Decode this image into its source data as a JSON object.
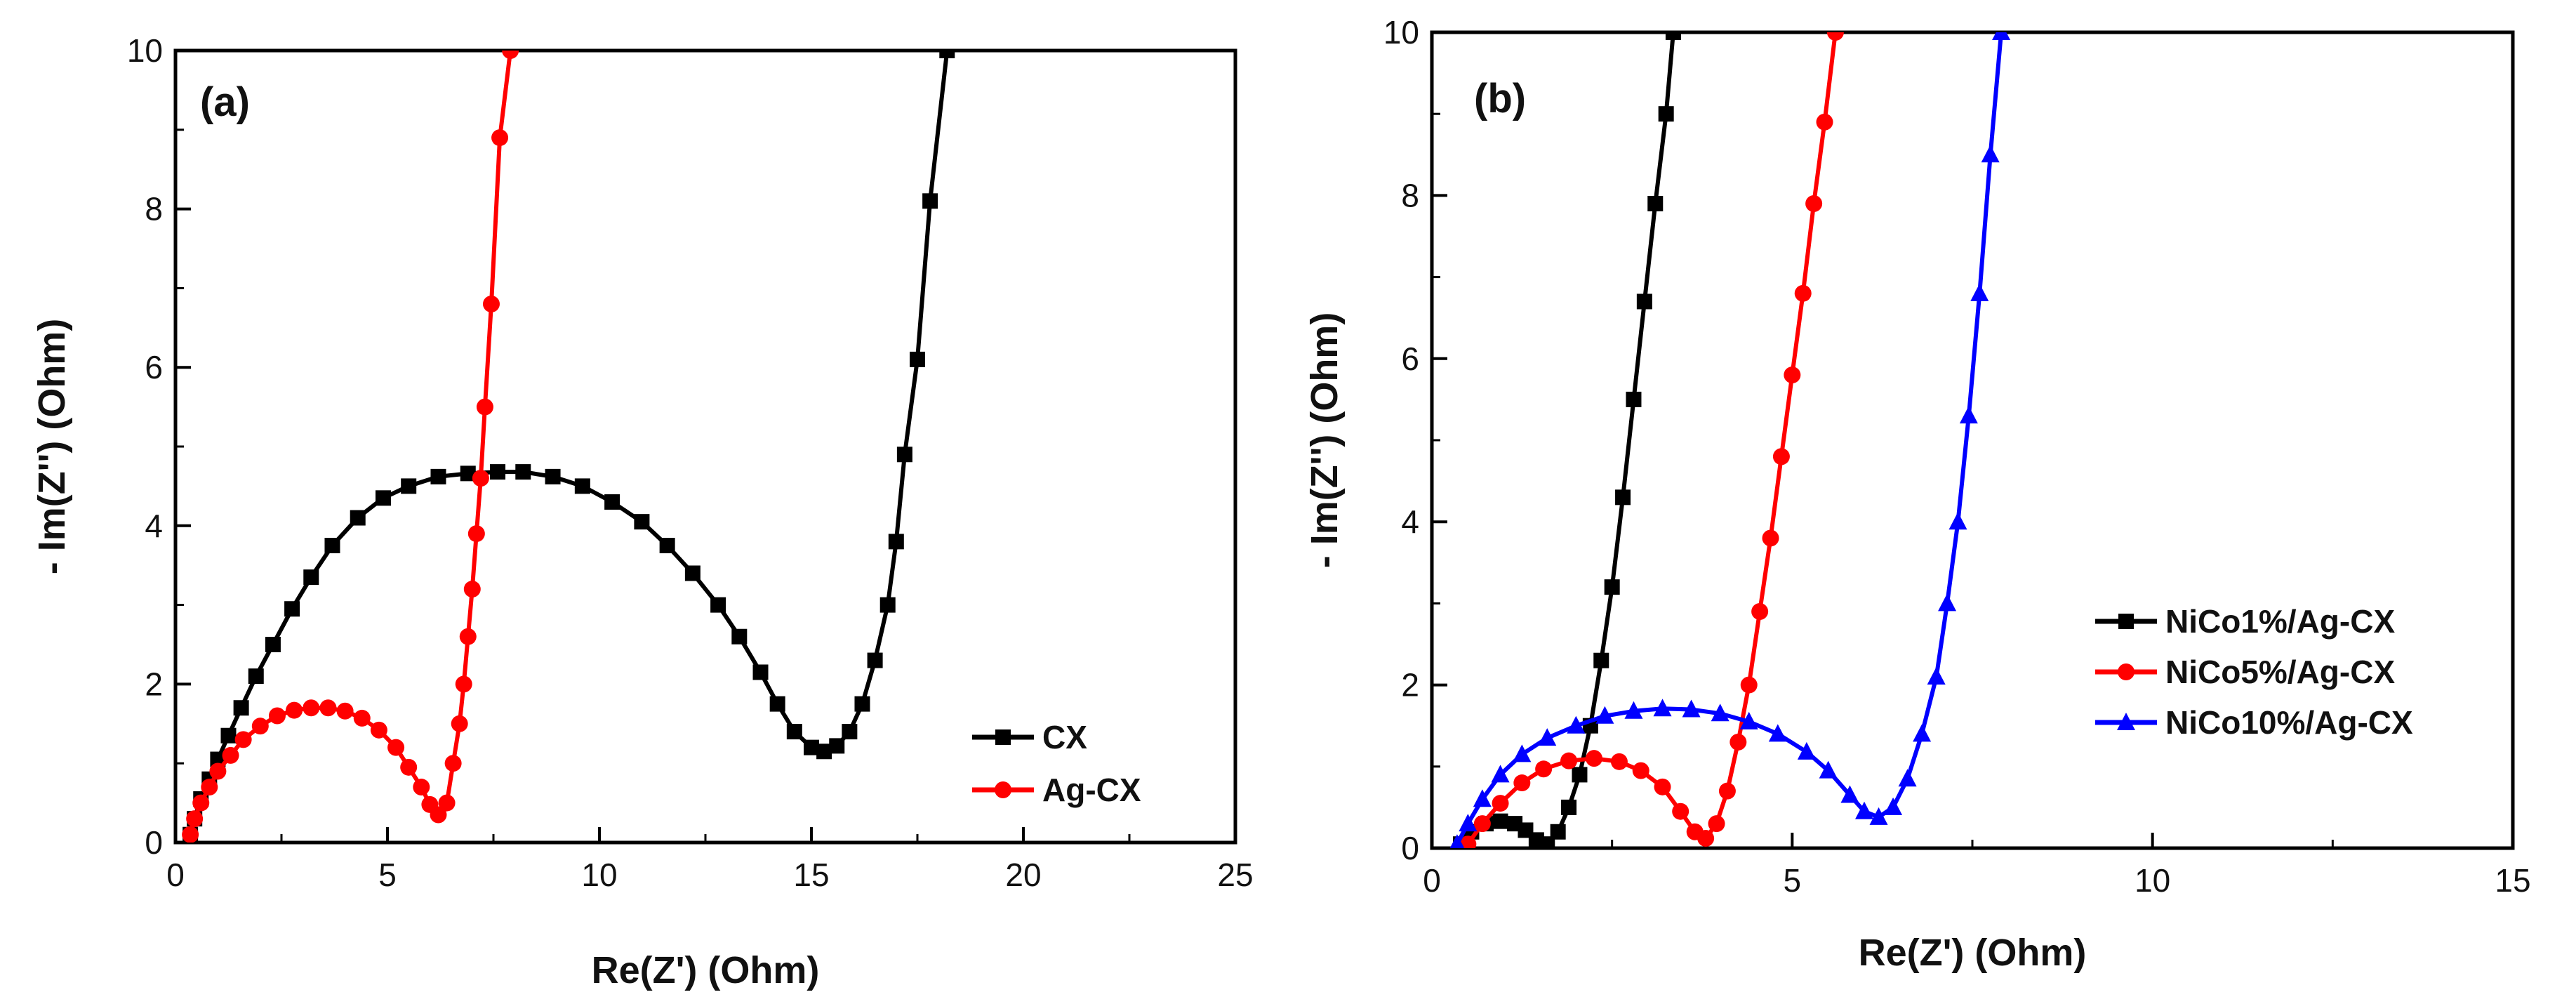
{
  "chart_data": [
    {
      "type": "line",
      "panel_label": "(a)",
      "xlabel": "Re(Z') (Ohm)",
      "ylabel": "- Im(Z'') (Ohm)",
      "xlim": [
        0,
        25
      ],
      "ylim": [
        0,
        10
      ],
      "xticks": [
        0,
        5,
        10,
        15,
        20,
        25
      ],
      "yticks": [
        0,
        2,
        4,
        6,
        8,
        10
      ],
      "legend_position": "bottom-right",
      "series": [
        {
          "name": "CX",
          "color": "#000000",
          "marker": "square",
          "points": [
            [
              0.35,
              0.1
            ],
            [
              0.45,
              0.3
            ],
            [
              0.6,
              0.55
            ],
            [
              0.8,
              0.8
            ],
            [
              1.0,
              1.05
            ],
            [
              1.25,
              1.35
            ],
            [
              1.55,
              1.7
            ],
            [
              1.9,
              2.1
            ],
            [
              2.3,
              2.5
            ],
            [
              2.75,
              2.95
            ],
            [
              3.2,
              3.35
            ],
            [
              3.7,
              3.75
            ],
            [
              4.3,
              4.1
            ],
            [
              4.9,
              4.35
            ],
            [
              5.5,
              4.5
            ],
            [
              6.2,
              4.62
            ],
            [
              6.9,
              4.66
            ],
            [
              7.6,
              4.68
            ],
            [
              8.2,
              4.68
            ],
            [
              8.9,
              4.62
            ],
            [
              9.6,
              4.5
            ],
            [
              10.3,
              4.3
            ],
            [
              11.0,
              4.05
            ],
            [
              11.6,
              3.75
            ],
            [
              12.2,
              3.4
            ],
            [
              12.8,
              3.0
            ],
            [
              13.3,
              2.6
            ],
            [
              13.8,
              2.15
            ],
            [
              14.2,
              1.75
            ],
            [
              14.6,
              1.4
            ],
            [
              15.0,
              1.2
            ],
            [
              15.3,
              1.15
            ],
            [
              15.6,
              1.22
            ],
            [
              15.9,
              1.4
            ],
            [
              16.2,
              1.75
            ],
            [
              16.5,
              2.3
            ],
            [
              16.8,
              3.0
            ],
            [
              17.0,
              3.8
            ],
            [
              17.2,
              4.9
            ],
            [
              17.5,
              6.1
            ],
            [
              17.8,
              8.1
            ],
            [
              18.2,
              10.0
            ]
          ]
        },
        {
          "name": "Ag-CX",
          "color": "#ff0000",
          "marker": "circle",
          "points": [
            [
              0.35,
              0.1
            ],
            [
              0.45,
              0.3
            ],
            [
              0.6,
              0.5
            ],
            [
              0.8,
              0.7
            ],
            [
              1.0,
              0.9
            ],
            [
              1.3,
              1.1
            ],
            [
              1.6,
              1.3
            ],
            [
              2.0,
              1.47
            ],
            [
              2.4,
              1.6
            ],
            [
              2.8,
              1.67
            ],
            [
              3.2,
              1.7
            ],
            [
              3.6,
              1.7
            ],
            [
              4.0,
              1.66
            ],
            [
              4.4,
              1.57
            ],
            [
              4.8,
              1.42
            ],
            [
              5.2,
              1.2
            ],
            [
              5.5,
              0.95
            ],
            [
              5.8,
              0.7
            ],
            [
              6.0,
              0.48
            ],
            [
              6.2,
              0.35
            ],
            [
              6.4,
              0.5
            ],
            [
              6.55,
              1.0
            ],
            [
              6.7,
              1.5
            ],
            [
              6.8,
              2.0
            ],
            [
              6.9,
              2.6
            ],
            [
              7.0,
              3.2
            ],
            [
              7.1,
              3.9
            ],
            [
              7.2,
              4.6
            ],
            [
              7.3,
              5.5
            ],
            [
              7.45,
              6.8
            ],
            [
              7.65,
              8.9
            ],
            [
              7.9,
              10.0
            ]
          ]
        }
      ]
    },
    {
      "type": "line",
      "panel_label": "(b)",
      "xlabel": "Re(Z') (Ohm)",
      "ylabel": "- Im(Z'') (Ohm)",
      "xlim": [
        0,
        15
      ],
      "ylim": [
        0,
        10
      ],
      "xticks": [
        0,
        5,
        10,
        15
      ],
      "yticks": [
        0,
        2,
        4,
        6,
        8,
        10
      ],
      "legend_position": "bottom-right",
      "series": [
        {
          "name": "NiCo1%/Ag-CX",
          "color": "#000000",
          "marker": "square",
          "points": [
            [
              0.4,
              0.05
            ],
            [
              0.55,
              0.2
            ],
            [
              0.75,
              0.3
            ],
            [
              0.95,
              0.33
            ],
            [
              1.15,
              0.3
            ],
            [
              1.3,
              0.22
            ],
            [
              1.45,
              0.1
            ],
            [
              1.6,
              0.05
            ],
            [
              1.75,
              0.2
            ],
            [
              1.9,
              0.5
            ],
            [
              2.05,
              0.9
            ],
            [
              2.2,
              1.5
            ],
            [
              2.35,
              2.3
            ],
            [
              2.5,
              3.2
            ],
            [
              2.65,
              4.3
            ],
            [
              2.8,
              5.5
            ],
            [
              2.95,
              6.7
            ],
            [
              3.1,
              7.9
            ],
            [
              3.25,
              9.0
            ],
            [
              3.35,
              10.0
            ]
          ]
        },
        {
          "name": "NiCo5%/Ag-CX",
          "color": "#ff0000",
          "marker": "circle",
          "points": [
            [
              0.5,
              0.05
            ],
            [
              0.7,
              0.3
            ],
            [
              0.95,
              0.55
            ],
            [
              1.25,
              0.8
            ],
            [
              1.55,
              0.97
            ],
            [
              1.9,
              1.07
            ],
            [
              2.25,
              1.1
            ],
            [
              2.6,
              1.06
            ],
            [
              2.9,
              0.95
            ],
            [
              3.2,
              0.75
            ],
            [
              3.45,
              0.45
            ],
            [
              3.65,
              0.2
            ],
            [
              3.8,
              0.12
            ],
            [
              3.95,
              0.3
            ],
            [
              4.1,
              0.7
            ],
            [
              4.25,
              1.3
            ],
            [
              4.4,
              2.0
            ],
            [
              4.55,
              2.9
            ],
            [
              4.7,
              3.8
            ],
            [
              4.85,
              4.8
            ],
            [
              5.0,
              5.8
            ],
            [
              5.15,
              6.8
            ],
            [
              5.3,
              7.9
            ],
            [
              5.45,
              8.9
            ],
            [
              5.6,
              10.0
            ]
          ]
        },
        {
          "name": "NiCo10%/Ag-CX",
          "color": "#0000ff",
          "marker": "triangle",
          "points": [
            [
              0.35,
              0.05
            ],
            [
              0.5,
              0.3
            ],
            [
              0.7,
              0.6
            ],
            [
              0.95,
              0.9
            ],
            [
              1.25,
              1.15
            ],
            [
              1.6,
              1.35
            ],
            [
              2.0,
              1.5
            ],
            [
              2.4,
              1.62
            ],
            [
              2.8,
              1.68
            ],
            [
              3.2,
              1.71
            ],
            [
              3.6,
              1.7
            ],
            [
              4.0,
              1.65
            ],
            [
              4.4,
              1.55
            ],
            [
              4.8,
              1.4
            ],
            [
              5.2,
              1.18
            ],
            [
              5.5,
              0.95
            ],
            [
              5.8,
              0.65
            ],
            [
              6.0,
              0.45
            ],
            [
              6.2,
              0.38
            ],
            [
              6.4,
              0.5
            ],
            [
              6.6,
              0.85
            ],
            [
              6.8,
              1.4
            ],
            [
              7.0,
              2.1
            ],
            [
              7.15,
              3.0
            ],
            [
              7.3,
              4.0
            ],
            [
              7.45,
              5.3
            ],
            [
              7.6,
              6.8
            ],
            [
              7.75,
              8.5
            ],
            [
              7.9,
              10.0
            ]
          ]
        }
      ]
    }
  ]
}
